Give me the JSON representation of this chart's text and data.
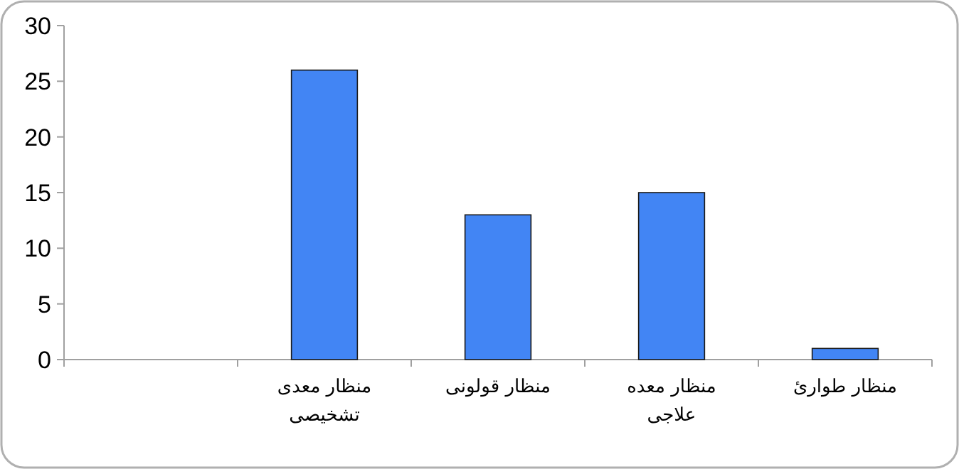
{
  "chart_data": {
    "type": "bar",
    "categories": [
      null,
      "منظار معدی تشخیصی",
      "منظار قولونی",
      "منظار معده علاجی",
      "منظار طوارئ"
    ],
    "values": [
      null,
      26,
      13,
      15,
      1
    ],
    "color": "#4285f4",
    "ylim": [
      0,
      30
    ],
    "yticks": [
      0,
      5,
      10,
      15,
      20,
      25,
      30
    ],
    "grid": false
  }
}
